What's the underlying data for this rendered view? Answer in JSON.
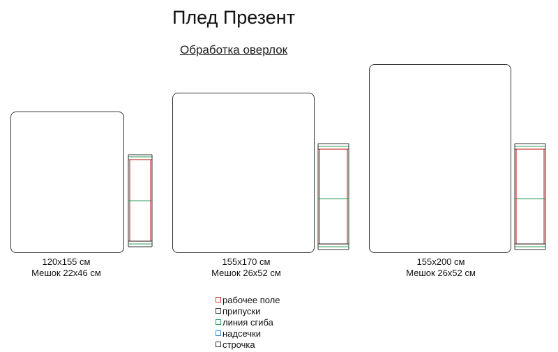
{
  "title": "Плед Презент",
  "subtitle": "Обработка оверлок",
  "items": [
    {
      "size_label": "120x155 см",
      "bag_label": "Мешок 22x46 см"
    },
    {
      "size_label": "155x170 см",
      "bag_label": "Мешок 26x52 см"
    },
    {
      "size_label": "155x200 см",
      "bag_label": "Мешок 26x52 см"
    }
  ],
  "legend": [
    {
      "label": "рабочее поле",
      "color": "#c0392b"
    },
    {
      "label": "припуски",
      "color": "#333333"
    },
    {
      "label": "линия сгиба",
      "color": "#2e9e5b"
    },
    {
      "label": "надсечки",
      "color": "#3b8fd1"
    },
    {
      "label": "строчка",
      "color": "#333333"
    }
  ]
}
